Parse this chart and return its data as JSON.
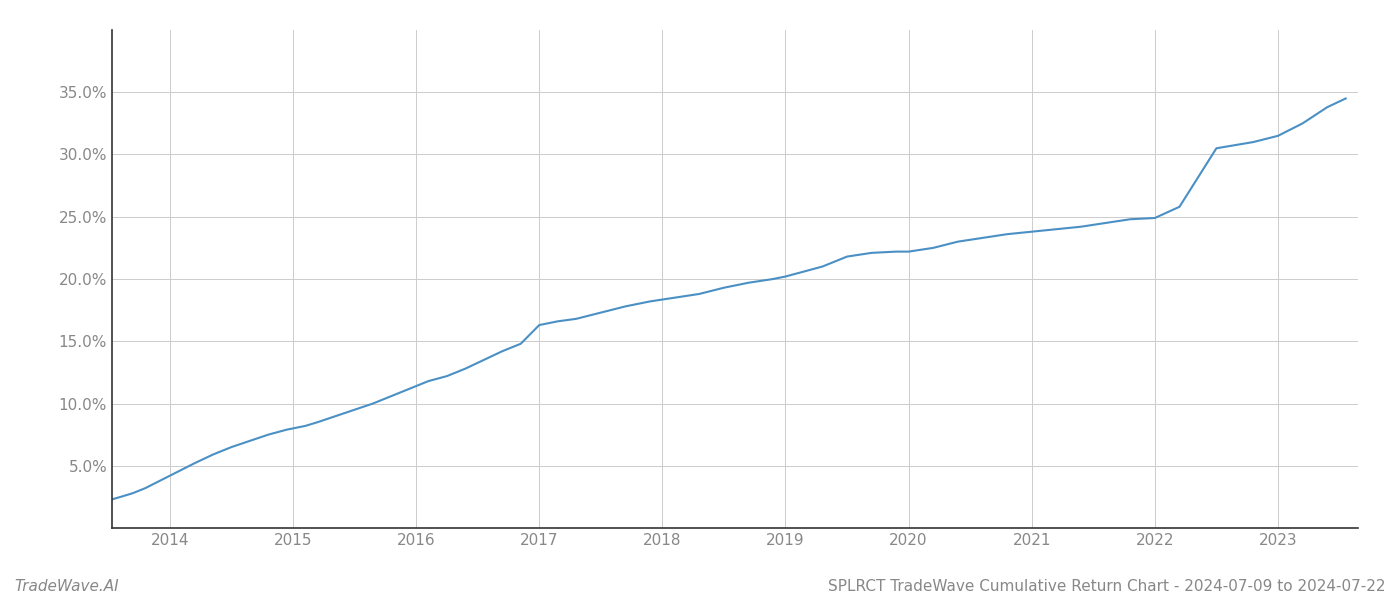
{
  "title": "SPLRCT TradeWave Cumulative Return Chart - 2024-07-09 to 2024-07-22",
  "watermark": "TradeWave.AI",
  "line_color": "#4a90c4",
  "background_color": "#ffffff",
  "grid_color": "#cccccc",
  "x_years": [
    2014,
    2015,
    2016,
    2017,
    2018,
    2019,
    2020,
    2021,
    2022,
    2023
  ],
  "x_data": [
    2013.53,
    2013.6,
    2013.7,
    2013.8,
    2013.9,
    2014.0,
    2014.1,
    2014.2,
    2014.35,
    2014.5,
    2014.65,
    2014.8,
    2014.95,
    2015.0,
    2015.1,
    2015.2,
    2015.35,
    2015.5,
    2015.65,
    2015.8,
    2015.95,
    2016.1,
    2016.25,
    2016.4,
    2016.55,
    2016.7,
    2016.85,
    2017.0,
    2017.15,
    2017.3,
    2017.5,
    2017.7,
    2017.9,
    2018.1,
    2018.3,
    2018.5,
    2018.7,
    2018.9,
    2019.0,
    2019.15,
    2019.3,
    2019.5,
    2019.7,
    2019.9,
    2020.0,
    2020.2,
    2020.4,
    2020.6,
    2020.8,
    2021.0,
    2021.2,
    2021.4,
    2021.6,
    2021.8,
    2022.0,
    2022.2,
    2022.5,
    2022.8,
    2023.0,
    2023.2,
    2023.4,
    2023.55
  ],
  "y_data": [
    2.3,
    2.5,
    2.8,
    3.2,
    3.7,
    4.2,
    4.7,
    5.2,
    5.9,
    6.5,
    7.0,
    7.5,
    7.9,
    8.0,
    8.2,
    8.5,
    9.0,
    9.5,
    10.0,
    10.6,
    11.2,
    11.8,
    12.2,
    12.8,
    13.5,
    14.2,
    14.8,
    16.3,
    16.6,
    16.8,
    17.3,
    17.8,
    18.2,
    18.5,
    18.8,
    19.3,
    19.7,
    20.0,
    20.2,
    20.6,
    21.0,
    21.8,
    22.1,
    22.2,
    22.2,
    22.5,
    23.0,
    23.3,
    23.6,
    23.8,
    24.0,
    24.2,
    24.5,
    24.8,
    24.9,
    25.8,
    30.5,
    31.0,
    31.5,
    32.5,
    33.8,
    34.5
  ],
  "ylim": [
    0,
    40
  ],
  "yticks": [
    5.0,
    10.0,
    15.0,
    20.0,
    25.0,
    30.0,
    35.0
  ],
  "xlim": [
    2013.53,
    2023.65
  ],
  "title_fontsize": 11,
  "tick_fontsize": 11,
  "watermark_fontsize": 11,
  "line_width": 1.5,
  "spine_color": "#333333"
}
